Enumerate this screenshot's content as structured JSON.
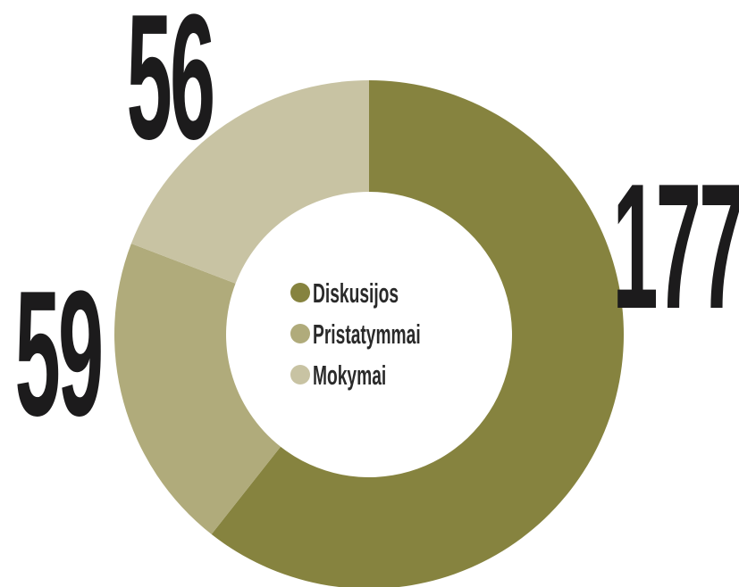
{
  "chart_data": {
    "type": "pie",
    "categories": [
      "Diskusijos",
      "Pristatymmai",
      "Mokymai"
    ],
    "values": [
      177,
      59,
      56
    ],
    "colors": [
      "#86833f",
      "#b0ab7b",
      "#c8c3a3"
    ],
    "donut": true
  }
}
